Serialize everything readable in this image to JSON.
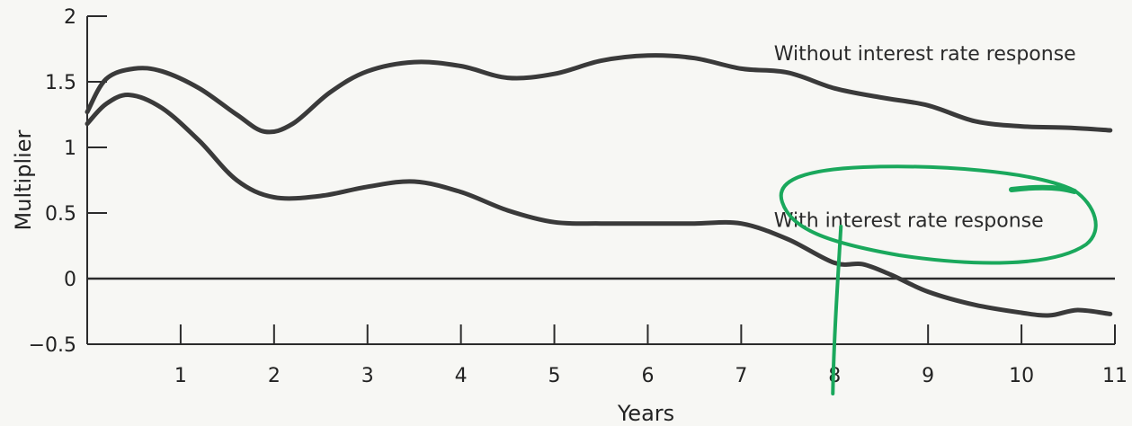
{
  "chart_data": {
    "type": "line",
    "title": "",
    "xlabel": "Years",
    "ylabel": "Multiplier",
    "xlim": [
      0,
      11
    ],
    "ylim": [
      -0.5,
      2
    ],
    "x_ticks": [
      {
        "value": 1,
        "label": "1"
      },
      {
        "value": 2,
        "label": "2"
      },
      {
        "value": 3,
        "label": "3"
      },
      {
        "value": 4,
        "label": "4"
      },
      {
        "value": 5,
        "label": "5"
      },
      {
        "value": 6,
        "label": "6"
      },
      {
        "value": 7,
        "label": "7"
      },
      {
        "value": 8,
        "label": "8"
      },
      {
        "value": 9,
        "label": "9"
      },
      {
        "value": 10,
        "label": "10"
      },
      {
        "value": 11,
        "label": "11"
      }
    ],
    "y_ticks": [
      {
        "value": 2,
        "label": "2"
      },
      {
        "value": 1.5,
        "label": "1.5"
      },
      {
        "value": 1,
        "label": "1"
      },
      {
        "value": 0.5,
        "label": "0.5"
      },
      {
        "value": 0,
        "label": "0"
      },
      {
        "value": -0.5,
        "label": "−0.5"
      }
    ],
    "grid": false,
    "zero_line": true,
    "series": [
      {
        "name": "Without interest rate response",
        "color": "#3a3a3a",
        "x": [
          0,
          0.2,
          0.5,
          0.8,
          1.2,
          1.6,
          1.9,
          2.2,
          2.6,
          3.0,
          3.5,
          4.0,
          4.5,
          5.0,
          5.5,
          6.0,
          6.5,
          7.0,
          7.5,
          8.0,
          8.5,
          9.0,
          9.5,
          10.0,
          10.5,
          10.95
        ],
        "y": [
          1.27,
          1.52,
          1.6,
          1.58,
          1.45,
          1.25,
          1.12,
          1.18,
          1.42,
          1.58,
          1.65,
          1.62,
          1.53,
          1.56,
          1.66,
          1.7,
          1.68,
          1.6,
          1.57,
          1.45,
          1.38,
          1.32,
          1.2,
          1.16,
          1.15,
          1.13
        ]
      },
      {
        "name": "With interest rate response",
        "color": "#3a3a3a",
        "x": [
          0,
          0.2,
          0.45,
          0.8,
          1.2,
          1.6,
          2.0,
          2.5,
          3.0,
          3.5,
          4.0,
          4.5,
          5.0,
          5.5,
          6.0,
          6.5,
          7.0,
          7.5,
          8.0,
          8.3,
          8.6,
          9.0,
          9.5,
          10.0,
          10.3,
          10.6,
          10.95
        ],
        "y": [
          1.18,
          1.33,
          1.4,
          1.3,
          1.05,
          0.75,
          0.62,
          0.63,
          0.7,
          0.74,
          0.66,
          0.52,
          0.43,
          0.42,
          0.42,
          0.42,
          0.42,
          0.3,
          0.12,
          0.11,
          0.03,
          -0.1,
          -0.2,
          -0.26,
          -0.28,
          -0.24,
          -0.27
        ]
      }
    ],
    "series_labels": [
      {
        "series": 0,
        "text": "Without interest rate response",
        "x": 7.35,
        "y": 1.72
      },
      {
        "series": 1,
        "text": "With interest rate response",
        "x": 7.35,
        "y": 0.45
      }
    ],
    "annotations": [
      {
        "type": "hand-drawn-ellipse",
        "color": "#1aa85c",
        "around": "With interest rate response"
      },
      {
        "type": "hand-drawn-vertical-line",
        "color": "#1aa85c",
        "at_x": 8
      }
    ]
  }
}
